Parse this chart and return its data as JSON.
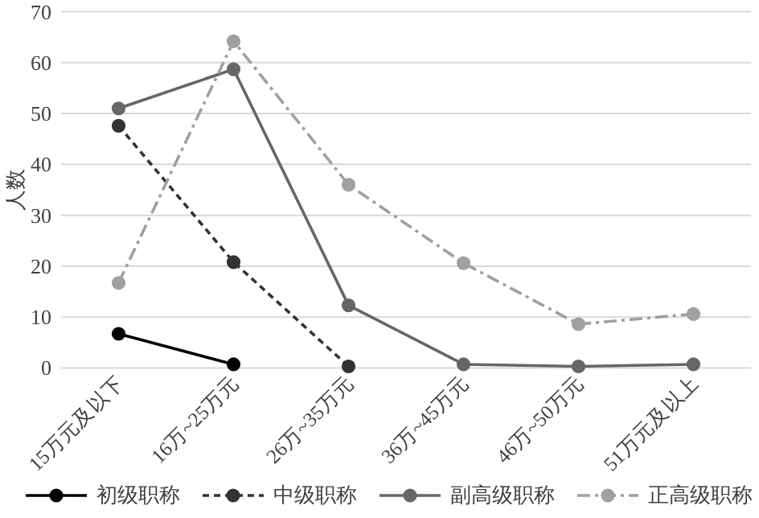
{
  "chart_data": {
    "type": "line",
    "ylabel": "人数",
    "categories": [
      "15万元及以下",
      "16万~25万元",
      "26万~35万元",
      "36万~45万元",
      "46万~50万元",
      "51万元及以上"
    ],
    "ylim": [
      0,
      70
    ],
    "yticks": [
      0,
      10,
      20,
      30,
      40,
      50,
      60,
      70
    ],
    "grid": "y",
    "legend": "bottom",
    "marker": "circle",
    "series": [
      {
        "name": "初级职称",
        "color": "#000000",
        "line_style": "solid",
        "values": [
          6.7,
          0.7,
          null,
          null,
          null,
          null
        ]
      },
      {
        "name": "中级职称",
        "color": "#333333",
        "line_style": "dashed",
        "values": [
          47.6,
          20.8,
          0.3,
          null,
          null,
          null
        ]
      },
      {
        "name": "副高级职称",
        "color": "#666666",
        "line_style": "solid",
        "values": [
          51,
          58.7,
          12.3,
          0.7,
          0.3,
          0.7
        ]
      },
      {
        "name": "正高级职称",
        "color": "#a0a0a0",
        "line_style": "dashdot",
        "values": [
          16.7,
          64.2,
          36,
          20.6,
          8.6,
          10.6
        ]
      }
    ]
  }
}
